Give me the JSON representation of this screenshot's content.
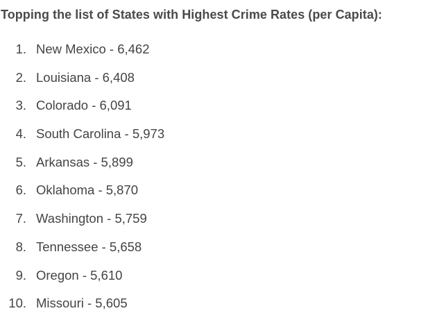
{
  "heading": "Topping the list of States with Highest Crime Rates (per Capita):",
  "items": [
    {
      "number": "1.",
      "text": "New Mexico - 6,462"
    },
    {
      "number": "2.",
      "text": "Louisiana - 6,408"
    },
    {
      "number": "3.",
      "text": "Colorado - 6,091"
    },
    {
      "number": "4.",
      "text": "South Carolina - 5,973"
    },
    {
      "number": "5.",
      "text": "Arkansas - 5,899"
    },
    {
      "number": "6.",
      "text": "Oklahoma - 5,870"
    },
    {
      "number": "7.",
      "text": "Washington - 5,759"
    },
    {
      "number": "8.",
      "text": "Tennessee - 5,658"
    },
    {
      "number": "9.",
      "text": "Oregon - 5,610"
    },
    {
      "number": "10.",
      "text": "Missouri - 5,605"
    }
  ]
}
